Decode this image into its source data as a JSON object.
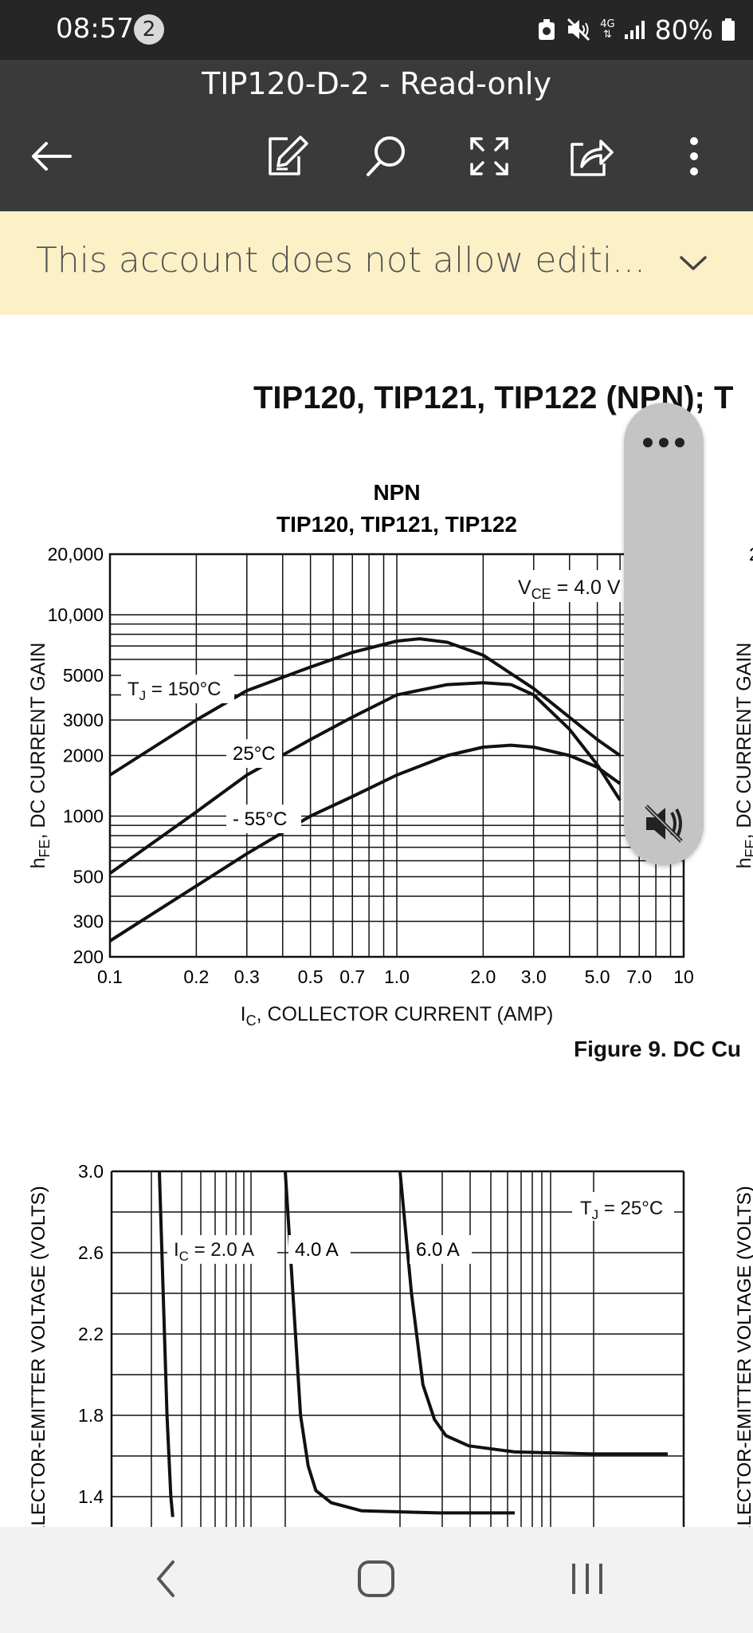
{
  "status_bar": {
    "time": "08:57",
    "notification_count": "2",
    "network": "4G",
    "battery": "80%"
  },
  "header": {
    "title": "TIP120-D-2 - Read-only",
    "toolbar": [
      "back-icon",
      "edit-icon",
      "search-icon",
      "fullscreen-icon",
      "share-icon",
      "more-icon"
    ]
  },
  "banner": {
    "text": "This account does not allow editi..."
  },
  "document": {
    "page_title": "TIP120, TIP121, TIP122 (NPN); T",
    "chart1": {
      "heading_line1": "NPN",
      "heading_line2": "TIP120, TIP121, TIP122",
      "ylabel": "hFE, DC CURRENT GAIN",
      "xlabel": "IC, COLLECTOR CURRENT (AMP)",
      "vce_label": "VCE = 4.0 V",
      "series_labels": [
        "TJ = 150°C",
        "25°C",
        "- 55°C"
      ],
      "x_ticks": [
        "0.1",
        "0.2",
        "0.3",
        "0.5",
        "0.7",
        "1.0",
        "2.0",
        "3.0",
        "5.0",
        "7.0",
        "10"
      ],
      "y_ticks": [
        "20,000",
        "10,000",
        "5000",
        "3000",
        "2000",
        "1000",
        "500",
        "300",
        "200"
      ],
      "right_ylabel_fragment": "hFE, DC CURRENT GAIN",
      "right_tick_fragment": "2"
    },
    "figure_caption": "Figure 9. DC Cu",
    "chart2": {
      "ylabel": "COLLECTOR-EMITTER VOLTAGE (VOLTS)",
      "tj_label": "TJ = 25°C",
      "series_labels": [
        "IC = 2.0 A",
        "4.0 A",
        "6.0 A"
      ],
      "y_ticks": [
        "3.0",
        "2.6",
        "2.2",
        "1.8",
        "1.4"
      ],
      "right_ylabel_fragment": "COLLECTOR-EMITTER VOLTAGE (VOLTS)"
    }
  },
  "chart_data": [
    {
      "type": "line",
      "title": "NPN TIP120, TIP121, TIP122",
      "xlabel": "IC, COLLECTOR CURRENT (AMP)",
      "ylabel": "hFE, DC CURRENT GAIN",
      "x_scale": "log",
      "y_scale": "log",
      "xlim": [
        0.1,
        10
      ],
      "ylim": [
        200,
        20000
      ],
      "grid": true,
      "series": [
        {
          "name": "TJ = 150°C",
          "x": [
            0.1,
            0.2,
            0.3,
            0.5,
            0.7,
            1.0,
            1.2,
            1.5,
            2.0,
            3.0,
            5.0,
            6.0
          ],
          "y": [
            1600,
            3000,
            4200,
            5500,
            6500,
            7400,
            7600,
            7300,
            6300,
            4300,
            2400,
            2000
          ]
        },
        {
          "name": "25°C",
          "x": [
            0.1,
            0.2,
            0.3,
            0.5,
            0.7,
            1.0,
            1.5,
            2.0,
            2.5,
            3.0,
            4.0,
            5.0,
            6.0
          ],
          "y": [
            520,
            1050,
            1600,
            2400,
            3100,
            4000,
            4500,
            4600,
            4500,
            4000,
            2700,
            1800,
            1200
          ]
        },
        {
          "name": "- 55°C",
          "x": [
            0.1,
            0.2,
            0.3,
            0.5,
            0.7,
            1.0,
            1.5,
            2.0,
            2.5,
            3.0,
            4.0,
            5.0,
            6.0
          ],
          "y": [
            240,
            450,
            650,
            1000,
            1250,
            1600,
            2000,
            2200,
            2250,
            2200,
            2000,
            1750,
            1450
          ]
        }
      ]
    },
    {
      "type": "line",
      "ylabel": "COLLECTOR-EMITTER VOLTAGE (VOLTS)",
      "ylim": [
        1.4,
        3.0
      ],
      "y_ticks": [
        1.4,
        1.8,
        2.2,
        2.6,
        3.0
      ],
      "grid": true,
      "series": [
        {
          "name": "IC = 2.0 A",
          "x": [
            0.0,
            0.1,
            0.2,
            0.3,
            0.35
          ],
          "y": [
            3.0,
            2.4,
            1.8,
            1.4,
            1.3
          ]
        },
        {
          "name": "4.0 A",
          "x": [
            0.0,
            0.2,
            0.4,
            0.6,
            0.8,
            1.2,
            2.0,
            4.0,
            6.0
          ],
          "y": [
            3.0,
            2.4,
            1.8,
            1.55,
            1.43,
            1.37,
            1.33,
            1.32,
            1.32
          ]
        },
        {
          "name": "6.0 A",
          "x": [
            0.0,
            0.3,
            0.6,
            0.9,
            1.2,
            1.8,
            3.0,
            5.0,
            7.0
          ],
          "y": [
            3.0,
            2.4,
            1.95,
            1.78,
            1.7,
            1.65,
            1.62,
            1.61,
            1.61
          ]
        }
      ]
    }
  ],
  "floating_panel": {
    "more": "more-dots-icon",
    "mute": "mute-icon"
  },
  "nav_bar": [
    "nav-back-icon",
    "nav-home-icon",
    "nav-recents-icon"
  ]
}
